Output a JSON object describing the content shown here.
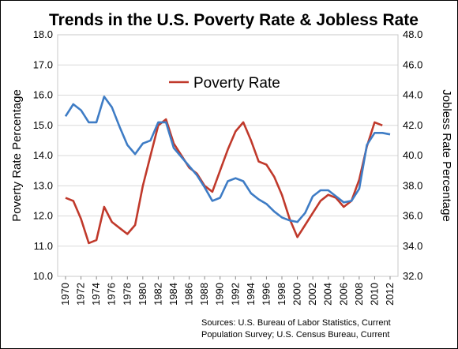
{
  "chart_data": {
    "type": "line",
    "title": "Trends in the U.S. Poverty Rate & Jobless Rate",
    "ylabel_left": "Poverty Rate Percentage",
    "ylabel_right": "Jobless Rate Percentage",
    "ylim_left": [
      10.0,
      18.0
    ],
    "ylim_right": [
      32.0,
      48.0
    ],
    "yticks_left": [
      "10.0",
      "11.0",
      "12.0",
      "13.0",
      "14.0",
      "15.0",
      "16.0",
      "17.0",
      "18.0"
    ],
    "yticks_right": [
      "32.0",
      "34.0",
      "36.0",
      "38.0",
      "40.0",
      "42.0",
      "44.0",
      "46.0",
      "48.0"
    ],
    "xticks": [
      "1970",
      "1972",
      "1974",
      "1976",
      "1978",
      "1980",
      "1982",
      "1984",
      "1986",
      "1988",
      "1990",
      "1992",
      "1994",
      "1996",
      "1998",
      "2000",
      "2002",
      "2004",
      "2006",
      "2008",
      "2010",
      "2012"
    ],
    "grid": true,
    "legend": [
      {
        "label": "Poverty Rate",
        "color": "#c0392b"
      }
    ],
    "series": [
      {
        "name": "Poverty Rate",
        "axis": "left",
        "color": "#c0392b",
        "x": [
          1970,
          1971,
          1972,
          1973,
          1974,
          1975,
          1976,
          1977,
          1978,
          1979,
          1980,
          1981,
          1982,
          1983,
          1984,
          1985,
          1986,
          1987,
          1988,
          1989,
          1990,
          1991,
          1992,
          1993,
          1994,
          1995,
          1996,
          1997,
          1998,
          1999,
          2000,
          2001,
          2002,
          2003,
          2004,
          2005,
          2006,
          2007,
          2008,
          2009,
          2010,
          2011
        ],
        "values": [
          12.6,
          12.5,
          11.9,
          11.1,
          11.2,
          12.3,
          11.8,
          11.6,
          11.4,
          11.7,
          13.0,
          14.0,
          15.0,
          15.2,
          14.4,
          14.0,
          13.6,
          13.4,
          13.0,
          12.8,
          13.5,
          14.2,
          14.8,
          15.1,
          14.5,
          13.8,
          13.7,
          13.3,
          12.7,
          11.9,
          11.3,
          11.7,
          12.1,
          12.5,
          12.7,
          12.6,
          12.3,
          12.5,
          13.2,
          14.3,
          15.1,
          15.0
        ]
      },
      {
        "name": "",
        "axis": "right",
        "color": "#3e7cc5",
        "x": [
          1970,
          1971,
          1972,
          1973,
          1974,
          1975,
          1976,
          1977,
          1978,
          1979,
          1980,
          1981,
          1982,
          1983,
          1984,
          1985,
          1986,
          1987,
          1988,
          1989,
          1990,
          1991,
          1992,
          1993,
          1994,
          1995,
          1996,
          1997,
          1998,
          1999,
          2000,
          2001,
          2002,
          2003,
          2004,
          2005,
          2006,
          2007,
          2008,
          2009,
          2010,
          2011,
          2012
        ],
        "values": [
          42.6,
          43.4,
          43.0,
          42.2,
          42.2,
          43.9,
          43.2,
          41.9,
          40.7,
          40.1,
          40.8,
          41.0,
          42.2,
          42.2,
          40.5,
          39.9,
          39.3,
          38.7,
          37.9,
          37.0,
          37.2,
          38.3,
          38.5,
          38.3,
          37.5,
          37.1,
          36.8,
          36.3,
          35.9,
          35.7,
          35.6,
          36.2,
          37.3,
          37.7,
          37.7,
          37.3,
          36.9,
          37.0,
          37.8,
          40.7,
          41.5,
          41.5,
          41.4
        ]
      }
    ]
  },
  "sources": {
    "line1": "Sources: U.S. Bureau of Labor Statistics,  Current",
    "line2": "Population Survey;  U.S. Census Bureau, Current"
  }
}
